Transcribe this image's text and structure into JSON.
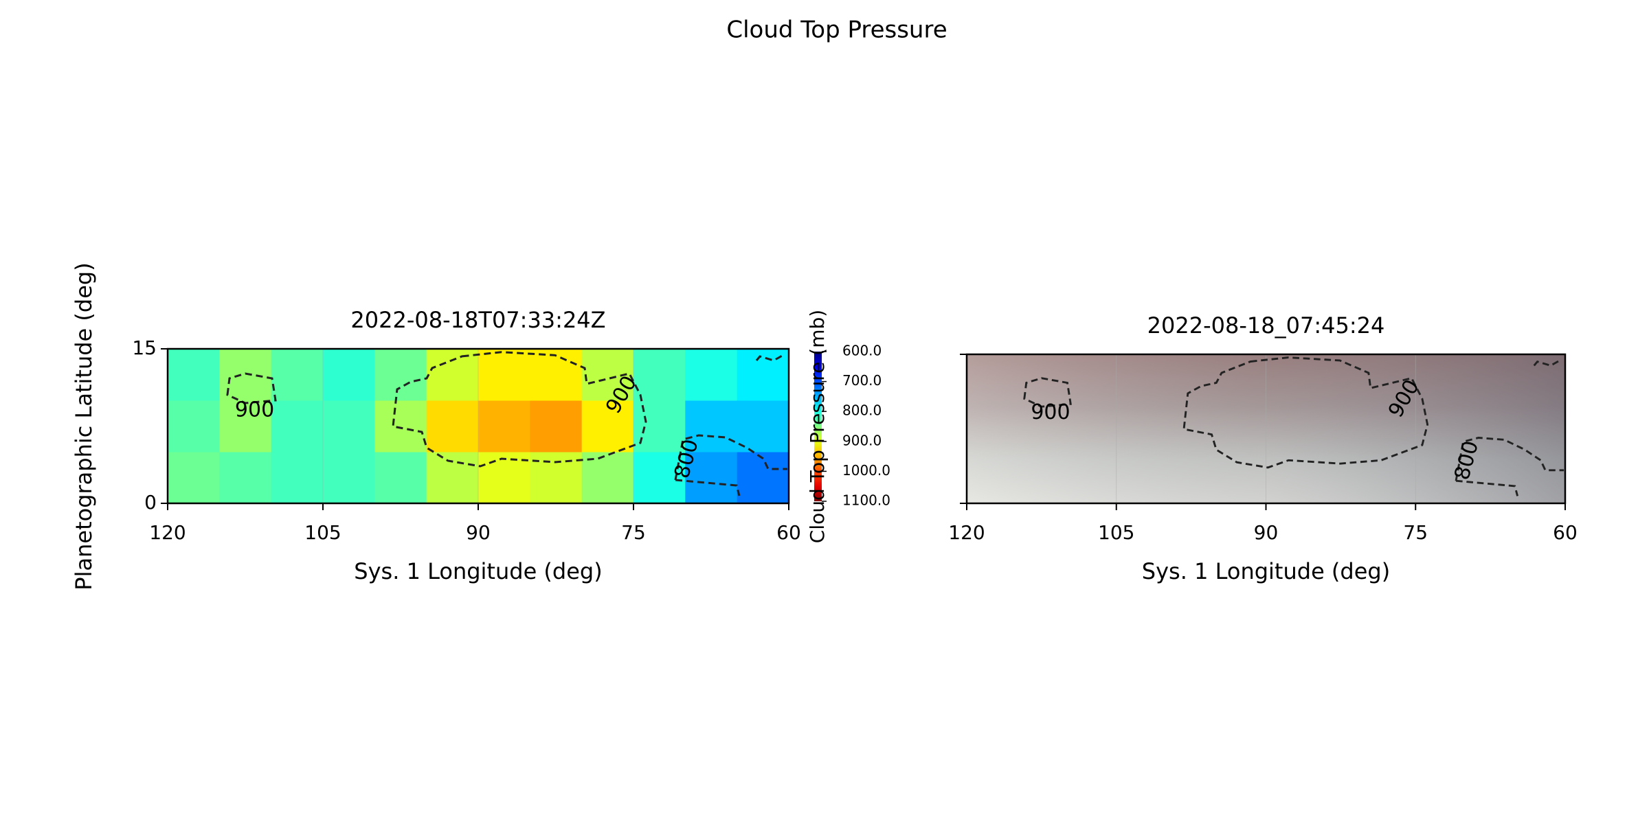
{
  "title": "Cloud Top Pressure",
  "chart_data": [
    {
      "type": "heatmap",
      "subtitle": "2022-08-18T07:33:24Z",
      "xlabel": "Sys. 1 Longitude (deg)",
      "ylabel": "Planetographic Latitude (deg)",
      "xlim": [
        120,
        60
      ],
      "xticks": [
        120,
        105,
        90,
        75,
        60
      ],
      "ylim": [
        0,
        15
      ],
      "yticks": [
        0,
        15
      ],
      "xgrid": true,
      "xbins": [
        120,
        115,
        110,
        105,
        100,
        95,
        90,
        85,
        80,
        75,
        70,
        65,
        60
      ],
      "ybins": [
        0,
        5,
        10,
        15
      ],
      "values": [
        [
          840,
          830,
          820,
          820,
          830,
          880,
          900,
          890,
          860,
          800,
          740,
          720
        ],
        [
          830,
          860,
          820,
          820,
          870,
          930,
          950,
          960,
          920,
          820,
          760,
          760
        ],
        [
          820,
          860,
          830,
          810,
          840,
          890,
          920,
          920,
          880,
          820,
          800,
          780
        ]
      ],
      "colormap": "jet",
      "clim": [
        600,
        1100
      ],
      "colorbar_label": "Cloud Top Pressure (mb)",
      "colorbar_ticks": [
        {
          "value": 600,
          "label": "600.0"
        },
        {
          "value": 700,
          "label": "700.0"
        },
        {
          "value": 800,
          "label": "800.0"
        },
        {
          "value": 900,
          "label": "900.0"
        },
        {
          "value": 1000,
          "label": "1000.0"
        },
        {
          "value": 1100,
          "label": "1100.0"
        }
      ],
      "contour_labels": [
        {
          "text": "900",
          "x": 111.6,
          "y": 9,
          "angle": 0
        },
        {
          "text": "900",
          "x": 76.1,
          "y": 10.5,
          "angle": -60
        },
        {
          "text": "800",
          "x": 69.8,
          "y": 4.3,
          "angle": -75
        }
      ]
    },
    {
      "type": "image",
      "subtitle": "2022-08-18_07:45:24",
      "xlabel": "Sys. 1 Longitude (deg)",
      "xlim": [
        120,
        60
      ],
      "xticks": [
        120,
        105,
        90,
        75,
        60
      ],
      "ylim": [
        0,
        15
      ],
      "yticks": [
        0,
        15
      ],
      "ytick_labels": false,
      "xgrid": true,
      "contour_labels": [
        {
          "text": "900",
          "x": 111.6,
          "y": 9.1,
          "angle": 0
        },
        {
          "text": "900",
          "x": 76.1,
          "y": 10.5,
          "angle": -60
        },
        {
          "text": "800",
          "x": 69.8,
          "y": 4.3,
          "angle": -75
        }
      ]
    }
  ]
}
